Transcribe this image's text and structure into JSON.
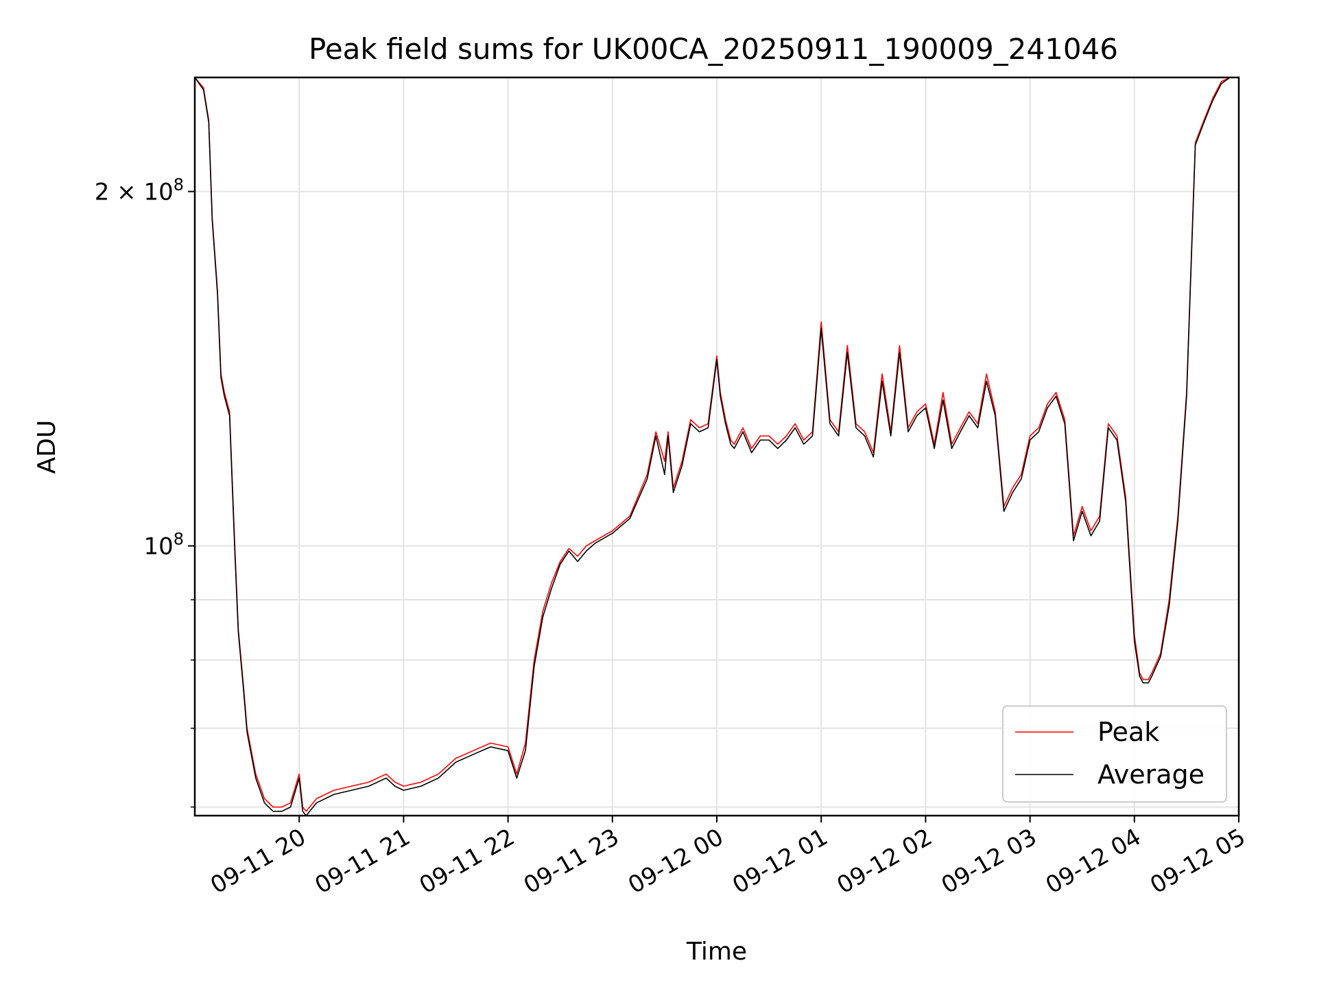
{
  "chart_data": {
    "type": "line",
    "title": "Peak field sums for UK00CA_20250911_190009_241046",
    "xlabel": "Time",
    "ylabel": "ADU",
    "y_scale": "log",
    "grid": true,
    "legend_position": "lower-right",
    "xlim": [
      "2025-09-11 19:00",
      "2025-09-12 05:00"
    ],
    "ylim": [
      59000000,
      250000000
    ],
    "x_ticks": [
      "09-11 20",
      "09-11 21",
      "09-11 22",
      "09-11 23",
      "09-12 00",
      "09-12 01",
      "09-12 02",
      "09-12 03",
      "09-12 04",
      "09-12 05"
    ],
    "y_tick_labels": [
      {
        "value": 200000000,
        "mantissa": "2",
        "exponent": "8"
      },
      {
        "value": 100000000,
        "mantissa": "",
        "exponent": "8"
      }
    ],
    "y_minor_ticks": [
      60000000,
      70000000,
      80000000,
      90000000
    ],
    "series": [
      {
        "name": "Peak",
        "color": "#ff0000",
        "x": [
          "19:00",
          "19:05",
          "19:08",
          "19:10",
          "19:13",
          "19:15",
          "19:17",
          "19:20",
          "19:23",
          "19:25",
          "19:28",
          "19:30",
          "19:35",
          "19:40",
          "19:45",
          "19:50",
          "19:55",
          "20:00",
          "20:02",
          "20:04",
          "20:06",
          "20:10",
          "20:20",
          "20:30",
          "20:40",
          "20:50",
          "20:55",
          "21:00",
          "21:10",
          "21:20",
          "21:30",
          "21:40",
          "21:50",
          "22:00",
          "22:05",
          "22:10",
          "22:15",
          "22:20",
          "22:25",
          "22:30",
          "22:35",
          "22:40",
          "22:45",
          "22:50",
          "23:00",
          "23:10",
          "23:20",
          "23:25",
          "23:30",
          "23:32",
          "23:35",
          "23:40",
          "23:45",
          "23:50",
          "23:55",
          "00:00",
          "00:02",
          "00:05",
          "00:08",
          "00:10",
          "00:15",
          "00:20",
          "00:25",
          "00:30",
          "00:35",
          "00:40",
          "00:45",
          "00:50",
          "00:55",
          "01:00",
          "01:05",
          "01:10",
          "01:15",
          "01:20",
          "01:25",
          "01:30",
          "01:35",
          "01:40",
          "01:45",
          "01:50",
          "01:55",
          "02:00",
          "02:05",
          "02:10",
          "02:15",
          "02:20",
          "02:25",
          "02:30",
          "02:35",
          "02:40",
          "02:45",
          "02:50",
          "02:55",
          "03:00",
          "03:05",
          "03:10",
          "03:15",
          "03:20",
          "03:25",
          "03:30",
          "03:35",
          "03:40",
          "03:45",
          "03:50",
          "03:55",
          "04:00",
          "04:03",
          "04:05",
          "04:08",
          "04:10",
          "04:15",
          "04:20",
          "04:25",
          "04:30",
          "04:35",
          "04:40",
          "04:45",
          "04:50",
          "04:55",
          "05:00"
        ],
        "values": [
          250000000,
          245000000,
          230000000,
          190000000,
          165000000,
          140000000,
          135000000,
          130000000,
          100000000,
          85000000,
          76000000,
          70000000,
          64000000,
          61000000,
          60000000,
          60000000,
          60500000,
          64000000,
          60000000,
          59500000,
          60000000,
          61000000,
          62000000,
          62500000,
          63000000,
          64000000,
          63000000,
          62500000,
          63000000,
          64000000,
          66000000,
          67000000,
          68000000,
          67500000,
          64000000,
          68000000,
          80000000,
          88000000,
          93000000,
          97000000,
          99500000,
          98000000,
          100000000,
          101000000,
          103000000,
          106000000,
          115000000,
          125000000,
          118000000,
          125000000,
          112000000,
          118000000,
          128000000,
          126000000,
          127000000,
          145000000,
          135000000,
          128000000,
          123000000,
          122000000,
          126000000,
          121000000,
          124000000,
          124000000,
          122000000,
          124000000,
          127000000,
          123000000,
          125000000,
          155000000,
          128000000,
          125000000,
          148000000,
          127000000,
          125000000,
          120000000,
          140000000,
          125000000,
          148000000,
          126000000,
          130000000,
          132000000,
          122000000,
          135000000,
          122000000,
          126000000,
          130000000,
          127000000,
          140000000,
          130000000,
          108000000,
          112000000,
          115000000,
          124000000,
          126000000,
          132000000,
          135000000,
          128000000,
          102000000,
          108000000,
          103000000,
          106000000,
          127000000,
          124000000,
          110000000,
          84000000,
          78000000,
          77000000,
          77000000,
          78000000,
          81000000,
          90000000,
          106000000,
          135000000,
          220000000,
          230000000,
          240000000,
          248000000,
          250000000,
          250000000
        ]
      },
      {
        "name": "Average",
        "color": "#000000",
        "x": [
          "19:00",
          "19:05",
          "19:08",
          "19:10",
          "19:13",
          "19:15",
          "19:17",
          "19:20",
          "19:23",
          "19:25",
          "19:28",
          "19:30",
          "19:35",
          "19:40",
          "19:45",
          "19:50",
          "19:55",
          "20:00",
          "20:02",
          "20:04",
          "20:06",
          "20:10",
          "20:20",
          "20:30",
          "20:40",
          "20:50",
          "20:55",
          "21:00",
          "21:10",
          "21:20",
          "21:30",
          "21:40",
          "21:50",
          "22:00",
          "22:05",
          "22:10",
          "22:15",
          "22:20",
          "22:25",
          "22:30",
          "22:35",
          "22:40",
          "22:45",
          "22:50",
          "23:00",
          "23:10",
          "23:20",
          "23:25",
          "23:30",
          "23:32",
          "23:35",
          "23:40",
          "23:45",
          "23:50",
          "23:55",
          "00:00",
          "00:02",
          "00:05",
          "00:08",
          "00:10",
          "00:15",
          "00:20",
          "00:25",
          "00:30",
          "00:35",
          "00:40",
          "00:45",
          "00:50",
          "00:55",
          "01:00",
          "01:05",
          "01:10",
          "01:15",
          "01:20",
          "01:25",
          "01:30",
          "01:35",
          "01:40",
          "01:45",
          "01:50",
          "01:55",
          "02:00",
          "02:05",
          "02:10",
          "02:15",
          "02:20",
          "02:25",
          "02:30",
          "02:35",
          "02:40",
          "02:45",
          "02:50",
          "02:55",
          "03:00",
          "03:05",
          "03:10",
          "03:15",
          "03:20",
          "03:25",
          "03:30",
          "03:35",
          "03:40",
          "03:45",
          "03:50",
          "03:55",
          "04:00",
          "04:03",
          "04:05",
          "04:08",
          "04:10",
          "04:15",
          "04:20",
          "04:25",
          "04:30",
          "04:35",
          "04:40",
          "04:45",
          "04:50",
          "04:55",
          "05:00"
        ],
        "values": [
          250000000,
          244000000,
          229000000,
          189000000,
          164000000,
          139000000,
          134000000,
          129000000,
          99000000,
          84500000,
          75500000,
          69500000,
          63500000,
          60500000,
          59500000,
          59500000,
          60000000,
          63500000,
          59500000,
          59000000,
          59500000,
          60500000,
          61500000,
          62000000,
          62500000,
          63500000,
          62500000,
          62000000,
          62500000,
          63500000,
          65500000,
          66500000,
          67500000,
          67000000,
          63500000,
          67000000,
          79000000,
          87000000,
          92000000,
          96500000,
          99000000,
          97000000,
          99000000,
          100500000,
          102500000,
          105500000,
          114000000,
          124000000,
          115000000,
          124000000,
          111000000,
          117000000,
          127000000,
          125000000,
          126000000,
          144000000,
          134000000,
          127000000,
          122000000,
          121000000,
          125000000,
          120000000,
          123000000,
          123000000,
          121000000,
          123000000,
          126000000,
          122000000,
          124000000,
          153000000,
          127000000,
          124000000,
          146000000,
          126000000,
          124000000,
          119000000,
          138000000,
          124000000,
          146000000,
          125000000,
          129000000,
          131000000,
          121000000,
          133000000,
          121000000,
          125000000,
          129000000,
          126000000,
          138000000,
          129000000,
          107000000,
          111000000,
          114000000,
          123000000,
          125000000,
          131000000,
          134000000,
          127000000,
          101000000,
          107000000,
          102000000,
          105000000,
          126000000,
          123000000,
          109000000,
          83000000,
          77500000,
          76500000,
          76500000,
          77500000,
          80500000,
          89000000,
          105000000,
          134000000,
          219000000,
          229000000,
          239000000,
          247000000,
          250000000,
          250000000
        ]
      }
    ]
  }
}
